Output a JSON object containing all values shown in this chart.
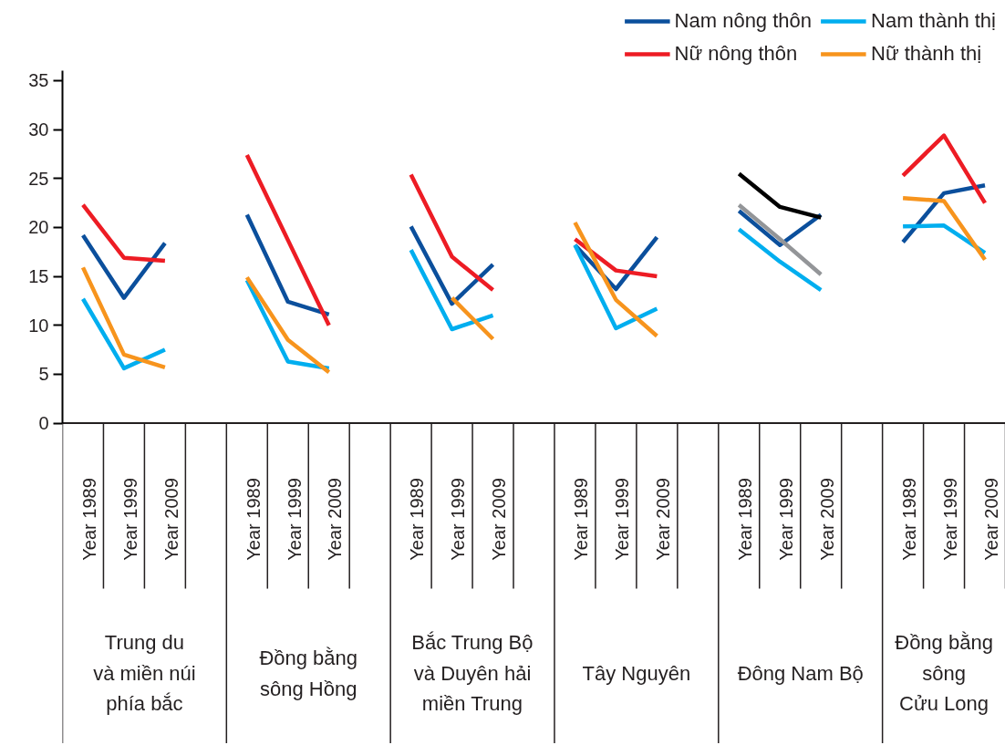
{
  "chart_data": {
    "type": "line",
    "categories": [
      "Year 1989",
      "Year 1999",
      "Year 2009",
      null,
      "Year 1989",
      "Year 1999",
      "Year 2009",
      null,
      "Year 1989",
      "Year 1999",
      "Year 2009",
      null,
      "Year 1989",
      "Year 1999",
      "Year 2009",
      null,
      "Year 1989",
      "Year 1999",
      "Year 2009",
      null,
      "Year 1989",
      "Year 1999",
      "Year 2009"
    ],
    "series": [
      {
        "name": "Nam nông thôn",
        "color": "#0b4f9c",
        "values": [
          19.2,
          12.8,
          18.4,
          null,
          21.3,
          12.4,
          11.1,
          null,
          20.1,
          12.2,
          16.2,
          null,
          18.2,
          13.7,
          19.0,
          null,
          21.7,
          18.2,
          21.3,
          null,
          18.5,
          23.5,
          24.3
        ]
      },
      {
        "name": "Nữ nông thôn",
        "color": "#ed1c24",
        "values": [
          22.3,
          16.9,
          16.6,
          null,
          27.4,
          18.7,
          10.0,
          null,
          25.4,
          17.0,
          13.6,
          null,
          18.8,
          15.6,
          15.0,
          null,
          null,
          null,
          null,
          null,
          25.3,
          29.4,
          22.5
        ]
      },
      {
        "name": "Nam thành thị",
        "color": "#00aeef",
        "values": [
          12.7,
          5.6,
          7.5,
          null,
          14.6,
          6.3,
          5.6,
          null,
          17.7,
          9.6,
          11.0,
          null,
          18.2,
          9.7,
          11.7,
          null,
          19.8,
          16.5,
          13.6,
          null,
          20.1,
          20.2,
          17.4
        ]
      },
      {
        "name": "Nữ thành thị",
        "color": "#f7941d",
        "values": [
          15.9,
          7.0,
          5.7,
          null,
          14.9,
          8.5,
          5.2,
          null,
          null,
          12.8,
          8.6,
          null,
          20.5,
          12.6,
          8.9,
          null,
          null,
          null,
          null,
          null,
          23.0,
          22.7,
          16.7
        ]
      },
      {
        "color": "#000000",
        "values": [
          null,
          null,
          null,
          null,
          null,
          null,
          null,
          null,
          null,
          null,
          null,
          null,
          null,
          null,
          null,
          null,
          25.5,
          22.1,
          21.0,
          null,
          null,
          null,
          null
        ]
      },
      {
        "color": "#939598",
        "values": [
          null,
          null,
          null,
          null,
          null,
          null,
          null,
          null,
          null,
          null,
          null,
          null,
          null,
          null,
          null,
          null,
          22.3,
          18.8,
          15.2,
          null,
          null,
          null,
          null
        ]
      }
    ],
    "annotations": [
      "Trung du\nvà miền núi\nphía bắc",
      "Đồng bằng\nsông Hồng",
      "Bắc Trung Bộ\nvà Duyên hải\nmiền Trung",
      "Tây Nguyên",
      "Đông Nam Bộ",
      "Đồng bằng\nsông\nCửu Long"
    ],
    "ylim": [
      0,
      36
    ],
    "yticks": [
      0,
      5,
      10,
      15,
      20,
      25,
      30,
      35
    ],
    "grid": false,
    "legend": "top right",
    "marker": "none",
    "line_style": "solid"
  }
}
